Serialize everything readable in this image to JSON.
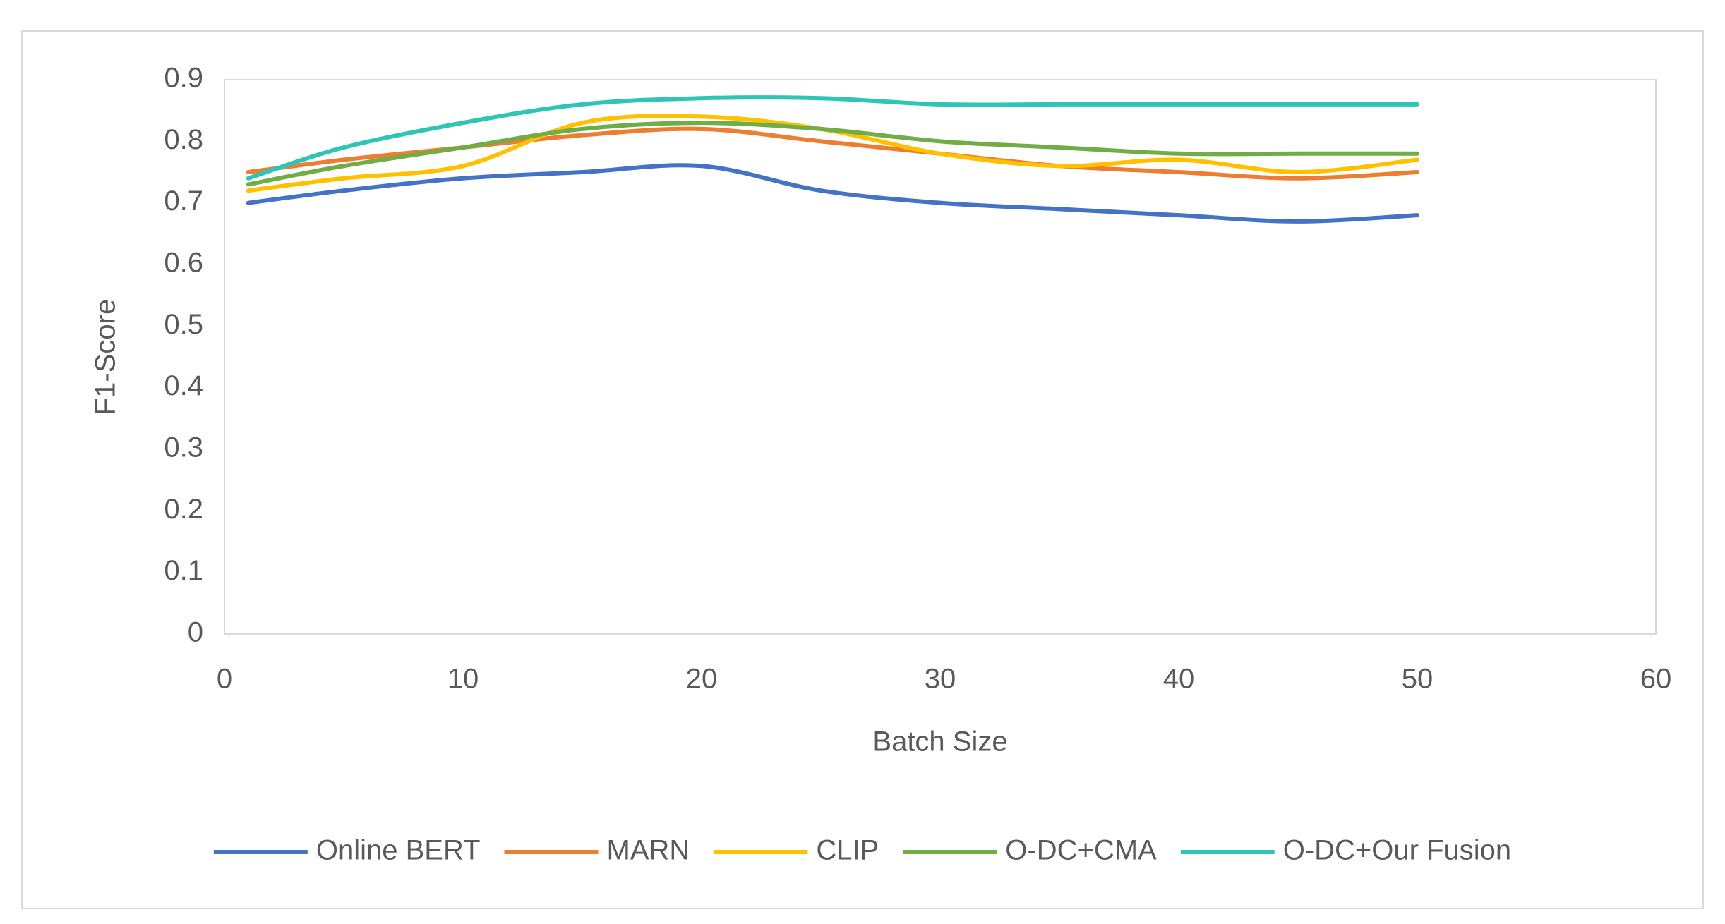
{
  "chart_data": {
    "type": "line",
    "x_label": "Batch Size",
    "y_label": "F1-Score",
    "x": [
      1,
      5,
      10,
      15,
      20,
      25,
      30,
      35,
      40,
      45,
      50
    ],
    "series": [
      {
        "name": "Online BERT",
        "color": "#4472c4",
        "values": [
          0.7,
          0.72,
          0.74,
          0.75,
          0.76,
          0.72,
          0.7,
          0.69,
          0.68,
          0.67,
          0.68
        ]
      },
      {
        "name": "MARN",
        "color": "#ed7d31",
        "values": [
          0.75,
          0.77,
          0.79,
          0.81,
          0.82,
          0.8,
          0.78,
          0.76,
          0.75,
          0.74,
          0.75
        ]
      },
      {
        "name": "CLIP",
        "color": "#ffc000",
        "values": [
          0.72,
          0.74,
          0.76,
          0.83,
          0.84,
          0.82,
          0.78,
          0.76,
          0.77,
          0.75,
          0.77
        ]
      },
      {
        "name": "O-DC+CMA",
        "color": "#70ad47",
        "values": [
          0.73,
          0.76,
          0.79,
          0.82,
          0.83,
          0.82,
          0.8,
          0.79,
          0.78,
          0.78,
          0.78
        ]
      },
      {
        "name": "O-DC+Our Fusion",
        "color": "#2ec4b6",
        "values": [
          0.74,
          0.79,
          0.83,
          0.86,
          0.87,
          0.87,
          0.86,
          0.86,
          0.86,
          0.86,
          0.86
        ]
      }
    ],
    "xlim": [
      0,
      60
    ],
    "xticks": [
      0,
      10,
      20,
      30,
      40,
      50,
      60
    ],
    "ylim": [
      0,
      0.9
    ],
    "yticks": [
      0,
      0.1,
      0.2,
      0.3,
      0.4,
      0.5,
      0.6,
      0.7,
      0.8,
      0.9
    ],
    "grid": false,
    "smooth": true,
    "legend": "bottom"
  }
}
